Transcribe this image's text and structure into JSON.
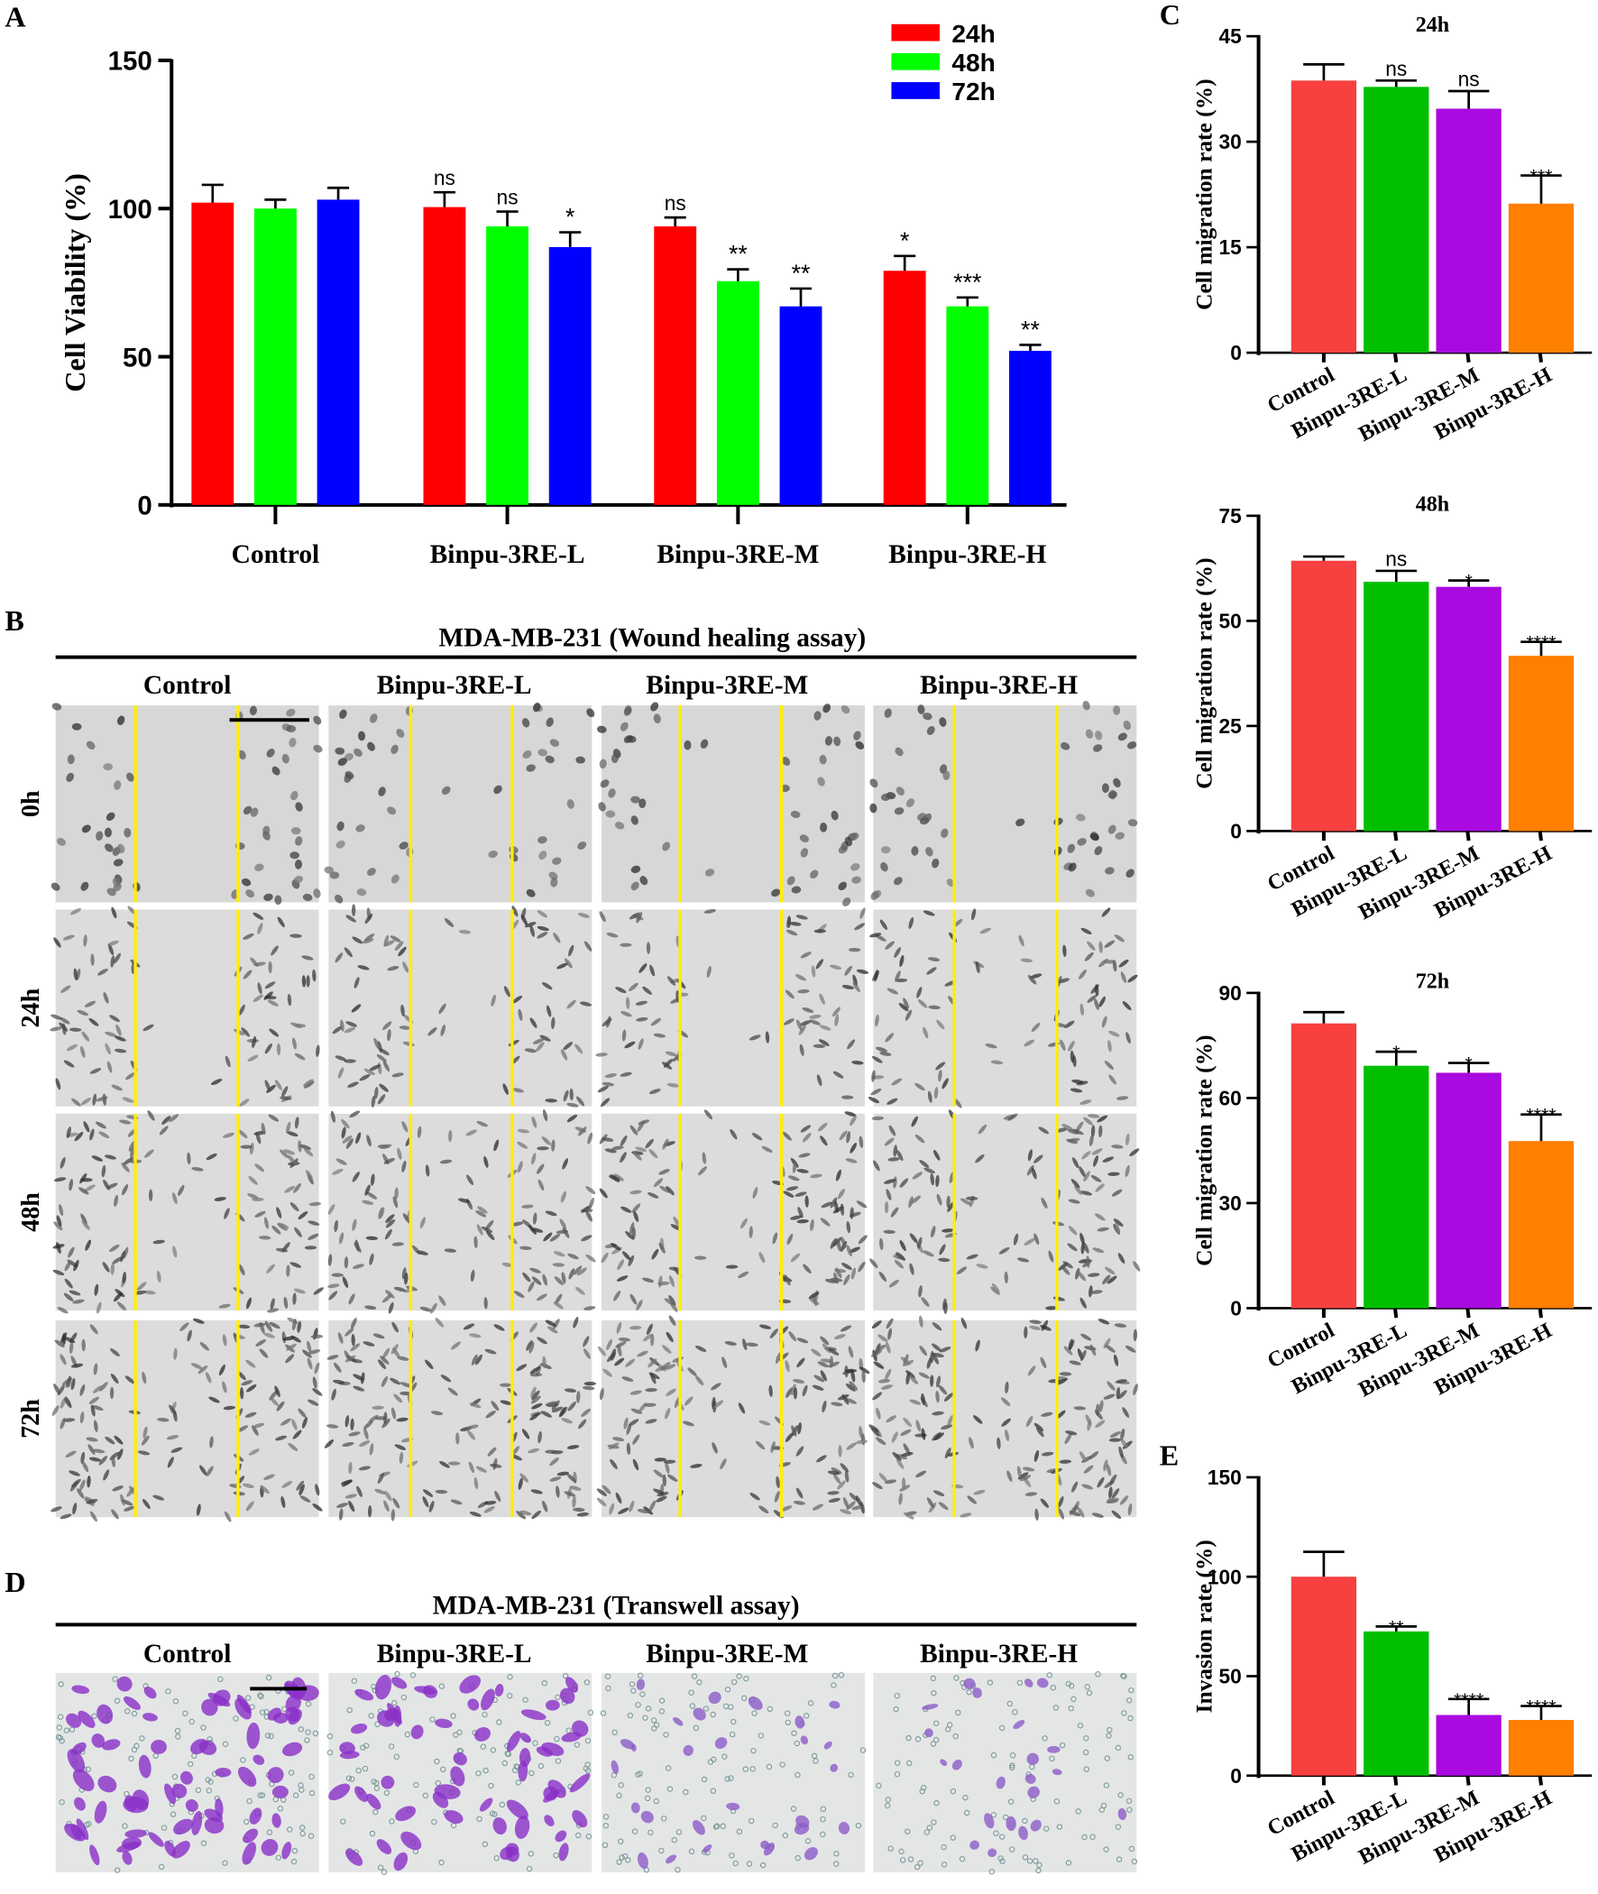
{
  "panel_labels": {
    "a": "A",
    "b": "B",
    "c": "C",
    "d": "D",
    "e": "E"
  },
  "colors": {
    "red": "#ff0000",
    "green": "#00ff00",
    "blue": "#0000ff",
    "c_control": "#f84040",
    "c_low": "#00bf00",
    "c_mid": "#a90adf",
    "c_high": "#ff7f00",
    "yellow": "#ffee00"
  },
  "chart_data": [
    {
      "id": "A",
      "type": "bar",
      "ylabel": "Cell Viability (%)",
      "ylim": [
        0,
        150
      ],
      "yticks": [
        0,
        50,
        100,
        150
      ],
      "categories": [
        "Control",
        "Binpu-3RE-L",
        "Binpu-3RE-M",
        "Binpu-3RE-H"
      ],
      "legend": "top-right",
      "series": [
        {
          "name": "24h",
          "values": [
            102,
            100.5,
            94,
            79
          ],
          "errors": [
            6,
            5,
            3,
            5
          ],
          "sig": [
            "",
            "ns",
            "ns",
            "*"
          ]
        },
        {
          "name": "48h",
          "values": [
            100,
            94,
            75.5,
            67
          ],
          "errors": [
            3,
            5,
            4,
            3
          ],
          "sig": [
            "",
            "ns",
            "**",
            "***"
          ]
        },
        {
          "name": "72h",
          "values": [
            103,
            87,
            67,
            52
          ],
          "errors": [
            4,
            5,
            6,
            2
          ],
          "sig": [
            "",
            "*",
            "**",
            "**"
          ]
        }
      ]
    },
    {
      "id": "C-24h",
      "type": "bar",
      "title": "24h",
      "ylabel": "Cell migration rate (%)",
      "ylim": [
        0,
        45
      ],
      "yticks": [
        0,
        15,
        30,
        45
      ],
      "categories": [
        "Control",
        "Binpu-3RE-L",
        "Binpu-3RE-M",
        "Binpu-3RE-H"
      ],
      "values": [
        38.7,
        37.8,
        34.7,
        21.2
      ],
      "errors": [
        2.3,
        0.9,
        2.5,
        4
      ],
      "sig": [
        "",
        "ns",
        "ns",
        "***"
      ]
    },
    {
      "id": "C-48h",
      "type": "bar",
      "title": "48h",
      "ylabel": "Cell migration rate (%)",
      "ylim": [
        0,
        75
      ],
      "yticks": [
        0,
        25,
        50,
        75
      ],
      "categories": [
        "Control",
        "Binpu-3RE-L",
        "Binpu-3RE-M",
        "Binpu-3RE-H"
      ],
      "values": [
        64.3,
        59.3,
        58.1,
        41.7
      ],
      "errors": [
        1,
        2.6,
        1.5,
        3.3
      ],
      "sig": [
        "",
        "ns",
        "*",
        "****"
      ]
    },
    {
      "id": "C-72h",
      "type": "bar",
      "title": "72h",
      "ylabel": "Cell migration rate (%)",
      "ylim": [
        0,
        90
      ],
      "yticks": [
        0,
        30,
        60,
        90
      ],
      "categories": [
        "Control",
        "Binpu-3RE-L",
        "Binpu-3RE-M",
        "Binpu-3RE-H"
      ],
      "values": [
        81.3,
        69.2,
        67.2,
        47.7
      ],
      "errors": [
        3.2,
        4,
        2.8,
        7.6
      ],
      "sig": [
        "",
        "*",
        "*",
        "****"
      ]
    },
    {
      "id": "E",
      "type": "bar",
      "ylabel": "Invasion rate (%)",
      "ylim": [
        0,
        150
      ],
      "yticks": [
        0,
        50,
        100,
        150
      ],
      "categories": [
        "Control",
        "Binpu-3RE-L",
        "Binpu-3RE-M",
        "Binpu-3RE-H"
      ],
      "values": [
        100,
        72.5,
        30.5,
        28
      ],
      "errors": [
        12.5,
        2.5,
        8,
        7
      ],
      "sig": [
        "",
        "**",
        "****",
        "****"
      ]
    }
  ],
  "panel_b": {
    "title": "MDA-MB-231 (Wound healing assay)",
    "columns": [
      "Control",
      "Binpu-3RE-L",
      "Binpu-3RE-M",
      "Binpu-3RE-H"
    ],
    "rows": [
      "0h",
      "24h",
      "48h",
      "72h"
    ]
  },
  "panel_d": {
    "title": "MDA-MB-231 (Transwell assay)",
    "columns": [
      "Control",
      "Binpu-3RE-L",
      "Binpu-3RE-M",
      "Binpu-3RE-H"
    ]
  }
}
